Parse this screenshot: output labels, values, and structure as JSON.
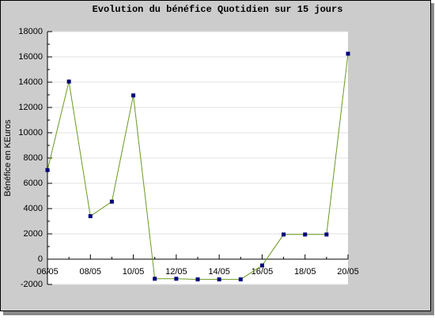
{
  "chart_data": {
    "type": "line",
    "title": "Evolution du bénéfice Quotidien sur 15 jours",
    "y_label": "Bénéfice en KEuros",
    "categories": [
      "06/05",
      null,
      "08/05",
      null,
      "10/05",
      null,
      "12/05",
      null,
      "14/05",
      null,
      "16/05",
      null,
      "18/05",
      null,
      "20/05"
    ],
    "series": [
      {
        "name": "Bénéfice",
        "color": "#6b9a1f",
        "marker_color": "#000080",
        "values": [
          7050,
          14050,
          3400,
          4550,
          12950,
          -1550,
          -1550,
          -1600,
          -1600,
          -1600,
          -500,
          1950,
          1950,
          1950,
          16250
        ]
      }
    ],
    "ylim": [
      -2000,
      18000
    ],
    "yticks": [
      -2000,
      0,
      2000,
      4000,
      6000,
      8000,
      10000,
      12000,
      14000,
      16000,
      18000
    ],
    "grid": true
  }
}
